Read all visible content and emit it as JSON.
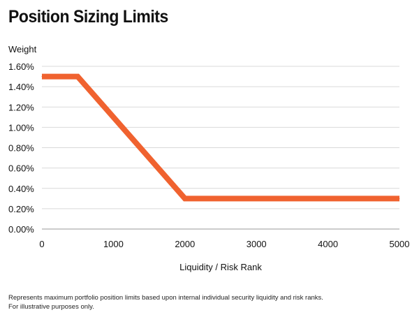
{
  "title": "Position Sizing Limits",
  "footnote": {
    "line1": "Represents maximum portfolio position limits based upon internal individual security liquidity and risk ranks.",
    "line2": "For illustrative purposes only."
  },
  "colors": {
    "line": "#f0622f",
    "grid": "#d9d9d9",
    "text": "#111111"
  },
  "chart_data": {
    "type": "line",
    "ylabel": "Weight",
    "xlabel": "Liquidity / Risk Rank",
    "xlim": [
      0,
      5000
    ],
    "ylim": [
      0,
      1.6
    ],
    "x_ticks": [
      0,
      1000,
      2000,
      3000,
      4000,
      5000
    ],
    "x_tick_labels": [
      "0",
      "1000",
      "2000",
      "3000",
      "4000",
      "5000"
    ],
    "y_ticks": [
      0,
      0.2,
      0.4,
      0.6,
      0.8,
      1.0,
      1.2,
      1.4,
      1.6
    ],
    "y_tick_labels": [
      "0.00%",
      "0.20%",
      "0.40%",
      "0.60%",
      "0.80%",
      "1.00%",
      "1.20%",
      "1.40%",
      "1.60%"
    ],
    "grid": true,
    "legend": "none",
    "series": [
      {
        "x": [
          0,
          500,
          2000,
          5000
        ],
        "y": [
          1.5,
          1.5,
          0.3,
          0.3
        ]
      }
    ]
  }
}
